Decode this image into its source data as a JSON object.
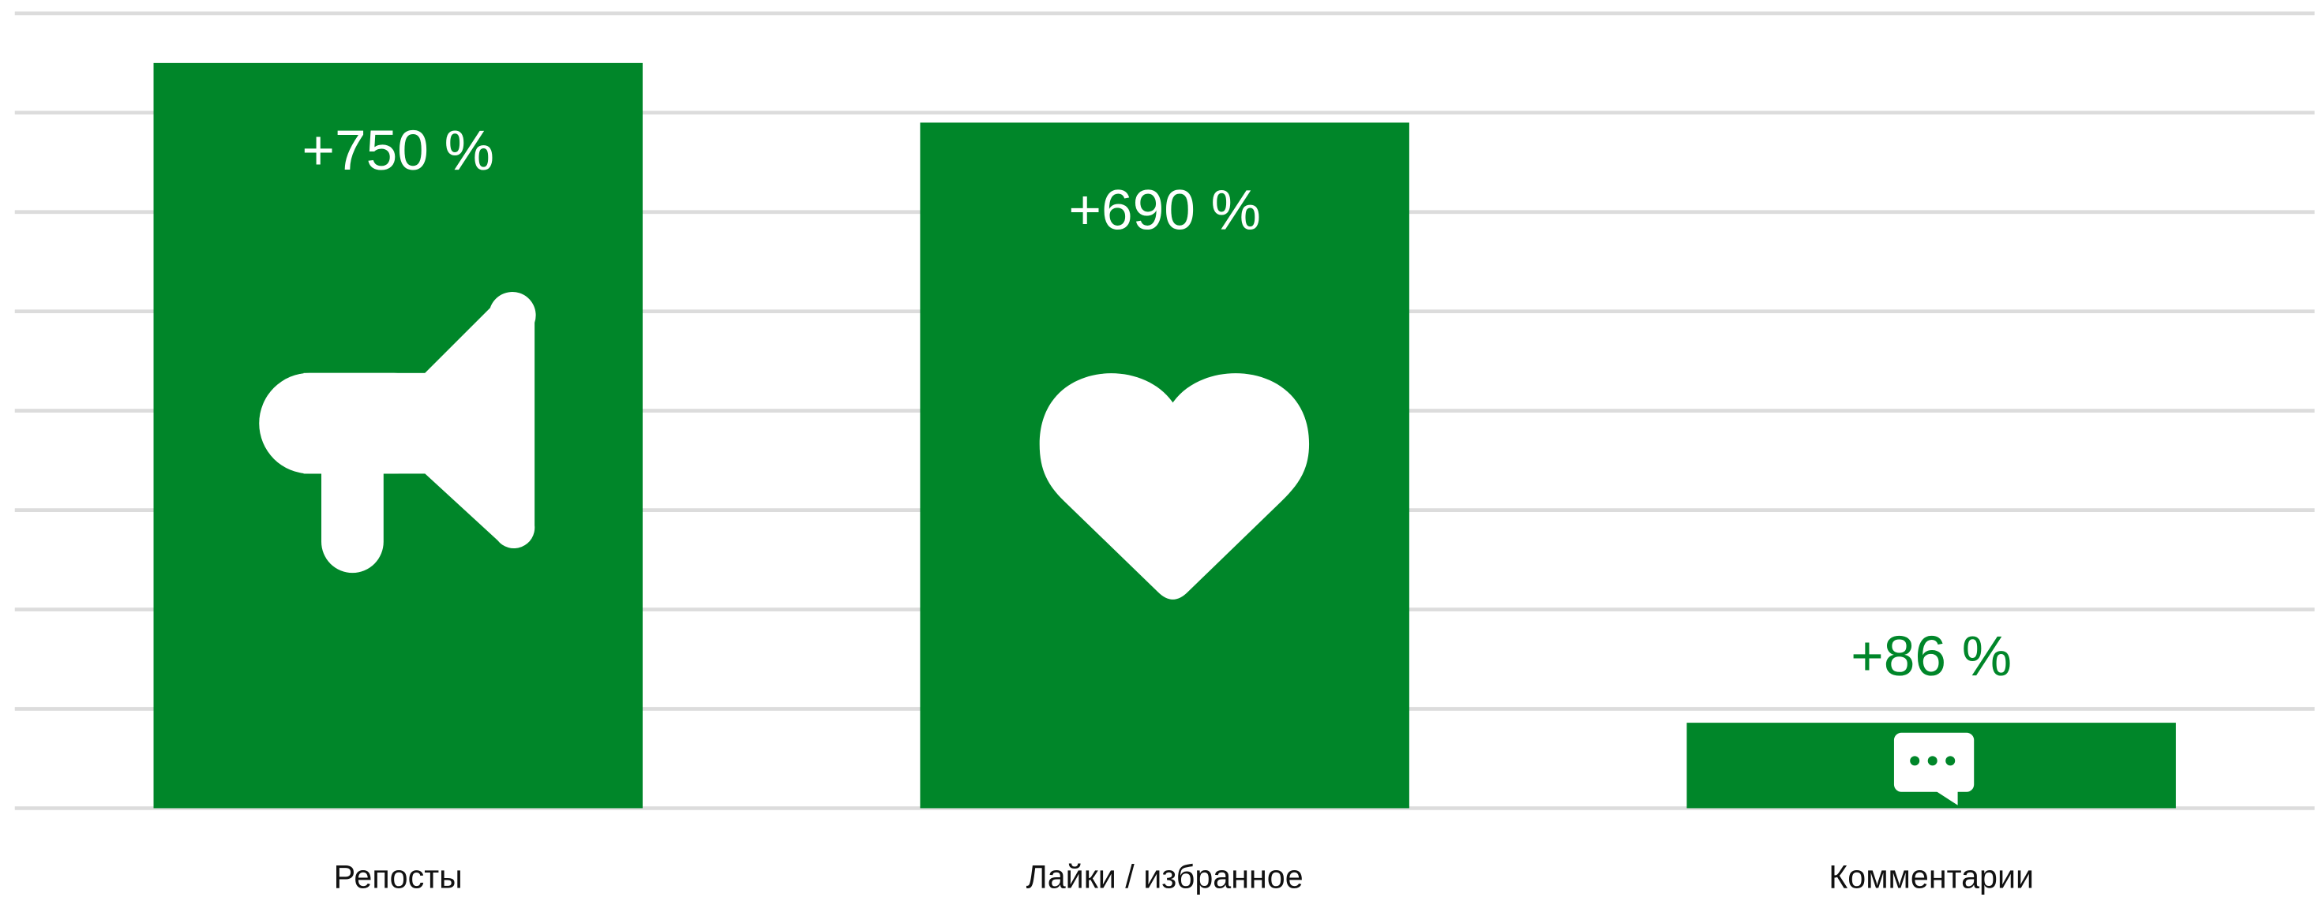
{
  "chart_data": {
    "type": "bar",
    "categories": [
      "Репосты",
      "Лайки / избранное",
      "Комментарии"
    ],
    "values": [
      750,
      690,
      86
    ],
    "value_labels": [
      "+750 %",
      "+690 %",
      "+86 %"
    ],
    "color": "#008629",
    "ylim": [
      0,
      800
    ],
    "yticks": [
      0,
      100,
      200,
      300,
      400,
      500,
      600,
      700,
      800
    ],
    "grid": true
  }
}
